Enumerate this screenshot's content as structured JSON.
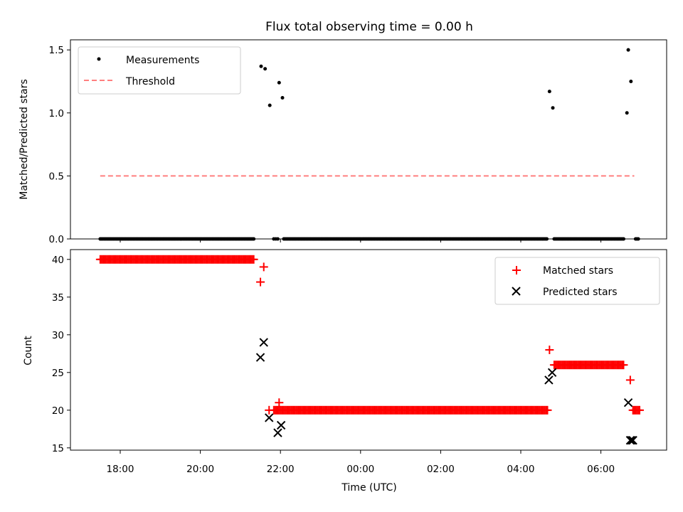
{
  "title": "Flux total observing time = 0.00 h",
  "chart_data": [
    {
      "type": "scatter",
      "ylabel": "Matched/Predicted stars",
      "xlabel": "",
      "ylim": [
        0,
        1.58
      ],
      "yticks": [
        0.0,
        0.5,
        1.0,
        1.5
      ],
      "ytick_labels": [
        "0.0",
        "0.5",
        "1.0",
        "1.5"
      ],
      "legend_position": "top-left",
      "legend": [
        "Measurements",
        "Threshold"
      ],
      "colors": {
        "measurements": "#000000",
        "threshold": "#ff7f7f"
      },
      "threshold": {
        "name": "Threshold",
        "value": 0.5,
        "x_start": "17:30",
        "x_end": "06:50",
        "style": "dashed"
      },
      "series": [
        {
          "name": "Measurements",
          "zero_ranges": [
            [
              "17:30",
              "21:20",
              2
            ],
            [
              "21:50",
              "21:56",
              3
            ],
            [
              "22:05",
              "04:40",
              2
            ],
            [
              "04:50",
              "06:35",
              2
            ],
            [
              "06:52",
              "06:56",
              2
            ]
          ],
          "points": [
            {
              "x": "21:31",
              "y": 1.37
            },
            {
              "x": "21:37",
              "y": 1.35
            },
            {
              "x": "21:44",
              "y": 1.06
            },
            {
              "x": "21:58",
              "y": 1.24
            },
            {
              "x": "22:03",
              "y": 1.12
            },
            {
              "x": "04:43",
              "y": 1.17
            },
            {
              "x": "04:48",
              "y": 1.04
            },
            {
              "x": "06:39",
              "y": 1.0
            },
            {
              "x": "06:41",
              "y": 1.5
            },
            {
              "x": "06:45",
              "y": 1.25
            }
          ]
        }
      ]
    },
    {
      "type": "scatter",
      "xlabel": "Time (UTC)",
      "ylabel": "Count",
      "ylim": [
        14.7,
        41.3
      ],
      "yticks": [
        15,
        20,
        25,
        30,
        35,
        40
      ],
      "ytick_labels": [
        "15",
        "20",
        "25",
        "30",
        "35",
        "40"
      ],
      "x_ticks": [
        "18:00",
        "20:00",
        "22:00",
        "00:00",
        "02:00",
        "04:00",
        "06:00"
      ],
      "legend_position": "top-right",
      "legend": [
        "Matched stars",
        "Predicted stars"
      ],
      "colors": {
        "matched": "#ff0000",
        "predicted": "#000000"
      },
      "series": [
        {
          "name": "Matched stars",
          "ranges": [
            [
              "17:30",
              "21:20",
              40,
              2
            ],
            [
              "21:50",
              "04:40",
              20,
              2
            ],
            [
              "04:50",
              "06:35",
              26,
              2
            ],
            [
              "06:48",
              "06:58",
              20,
              2
            ]
          ],
          "points": [
            {
              "x": "21:30",
              "y": 37
            },
            {
              "x": "21:35",
              "y": 39
            },
            {
              "x": "21:43",
              "y": 20
            },
            {
              "x": "21:58",
              "y": 21
            },
            {
              "x": "04:43",
              "y": 28
            },
            {
              "x": "06:44",
              "y": 24
            }
          ]
        },
        {
          "name": "Predicted stars",
          "points": [
            {
              "x": "21:30",
              "y": 27
            },
            {
              "x": "21:35",
              "y": 29
            },
            {
              "x": "21:43",
              "y": 19
            },
            {
              "x": "21:56",
              "y": 17
            },
            {
              "x": "22:01",
              "y": 18
            },
            {
              "x": "04:42",
              "y": 24
            },
            {
              "x": "04:47",
              "y": 25
            },
            {
              "x": "06:41",
              "y": 21
            },
            {
              "x": "06:44",
              "y": 16
            },
            {
              "x": "06:46",
              "y": 16
            },
            {
              "x": "06:48",
              "y": 16
            }
          ]
        }
      ]
    }
  ]
}
